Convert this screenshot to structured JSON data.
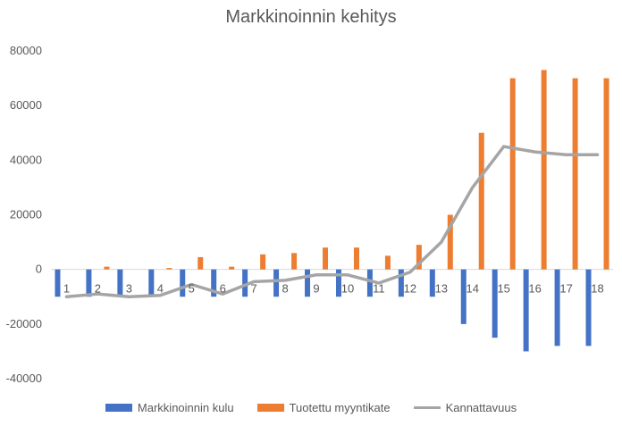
{
  "chart_data": {
    "type": "bar",
    "title": "Markkinoinnin kehitys",
    "categories": [
      "1",
      "2",
      "3",
      "4",
      "5",
      "6",
      "7",
      "8",
      "9",
      "10",
      "11",
      "12",
      "13",
      "14",
      "15",
      "16",
      "17",
      "18"
    ],
    "ylim": [
      -40000,
      80000
    ],
    "yticks": [
      80000,
      60000,
      40000,
      20000,
      0,
      -20000,
      -40000
    ],
    "grid": false,
    "legend_position": "bottom",
    "series": [
      {
        "name": "Markkinoinnin kulu",
        "kind": "bar",
        "color": "#4472C4",
        "values": [
          -10000,
          -10000,
          -10000,
          -10000,
          -10000,
          -10000,
          -10000,
          -10000,
          -10000,
          -10000,
          -10000,
          -10000,
          -10000,
          -20000,
          -25000,
          -30000,
          -28000,
          -28000
        ]
      },
      {
        "name": "Tuotettu myyntikate",
        "kind": "bar",
        "color": "#ED7D31",
        "values": [
          0,
          1000,
          0,
          500,
          4500,
          1000,
          5500,
          6000,
          8000,
          8000,
          5000,
          9000,
          20000,
          50000,
          70000,
          73000,
          70000,
          70000
        ]
      },
      {
        "name": "Kannattavuus",
        "kind": "line",
        "color": "#A5A5A5",
        "values": [
          -10000,
          -9000,
          -10000,
          -9500,
          -5500,
          -9000,
          -4500,
          -4000,
          -2000,
          -2000,
          -5000,
          -1000,
          10000,
          30000,
          45000,
          43000,
          42000,
          42000
        ]
      }
    ]
  }
}
